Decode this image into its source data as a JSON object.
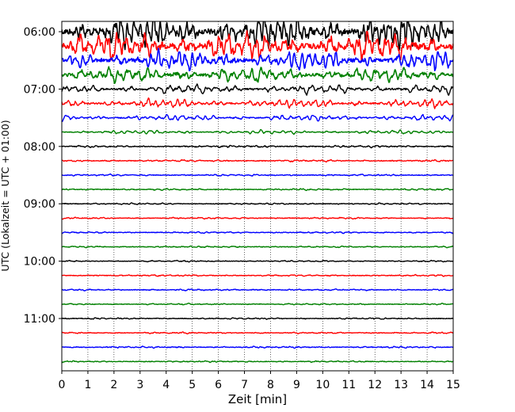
{
  "chart_data": {
    "type": "line",
    "title": "",
    "xlabel": "Zeit  [min]",
    "ylabel": "UTC (Lokalzeit = UTC + 01:00)",
    "xlim": [
      0,
      15
    ],
    "x_ticks": [
      0,
      1,
      2,
      3,
      4,
      5,
      6,
      7,
      8,
      9,
      10,
      11,
      12,
      13,
      14,
      15
    ],
    "x_tick_labels": [
      "0",
      "1",
      "2",
      "3",
      "4",
      "5",
      "6",
      "7",
      "8",
      "9",
      "10",
      "11",
      "12",
      "13",
      "14",
      "15"
    ],
    "y_tick_labels": [
      "06:00",
      "07:00",
      "08:00",
      "09:00",
      "10:00",
      "11:00"
    ],
    "y_tick_hours": [
      6,
      7,
      8,
      9,
      10,
      11
    ],
    "trace_interval_min": 15,
    "trace_start": "06:00",
    "trace_count": 24,
    "color_cycle": [
      "#000000",
      "#ff0000",
      "#0000ff",
      "#008000"
    ],
    "grid": "vertical dotted",
    "legend": "none",
    "trace_amplitude_level": [
      3.0,
      2.6,
      1.8,
      1.4,
      0.85,
      0.8,
      0.55,
      0.35,
      0.18,
      0.16,
      0.15,
      0.14,
      0.13,
      0.13,
      0.13,
      0.13,
      0.12,
      0.13,
      0.13,
      0.12,
      0.13,
      0.13,
      0.14,
      0.12
    ]
  }
}
